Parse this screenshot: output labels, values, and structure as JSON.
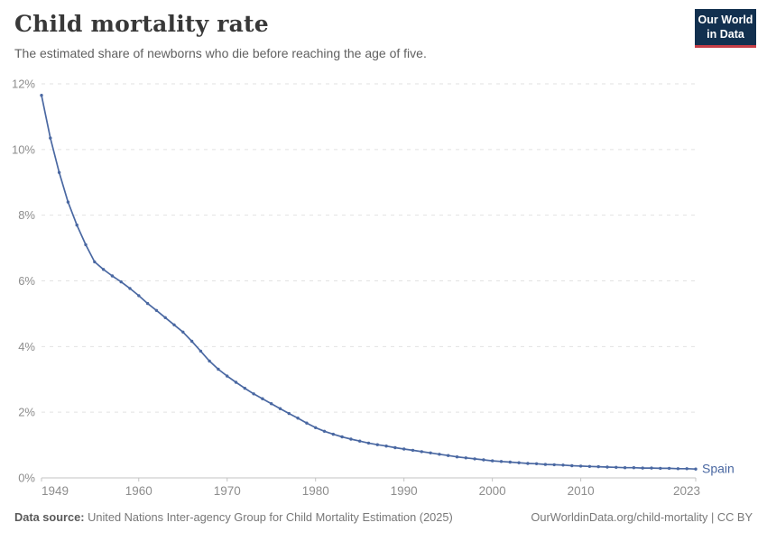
{
  "header": {
    "title": "Child mortality rate",
    "subtitle": "The estimated share of newborns who die before reaching the age of five."
  },
  "logo": {
    "line1": "Our World",
    "line2": "in Data",
    "bg_color": "#12304f",
    "accent_color": "#c53d46"
  },
  "chart_data": {
    "type": "line",
    "title": "Child mortality rate",
    "entity": "Spain",
    "unit": "%",
    "end_label": "Spain",
    "line_color": "#4a68a2",
    "grid": "horizontal-dashed",
    "legend_position": "end-of-line",
    "xlim": [
      1949,
      2023
    ],
    "ylim": [
      0,
      12
    ],
    "x_ticks": [
      1949,
      1960,
      1970,
      1980,
      1990,
      2000,
      2010,
      2023
    ],
    "y_ticks": [
      0,
      2,
      4,
      6,
      8,
      10,
      12
    ],
    "y_tick_labels": [
      "0%",
      "2%",
      "4%",
      "6%",
      "8%",
      "10%",
      "12%"
    ],
    "x": [
      1949,
      1950,
      1951,
      1952,
      1953,
      1954,
      1955,
      1956,
      1957,
      1958,
      1959,
      1960,
      1961,
      1962,
      1963,
      1964,
      1965,
      1966,
      1967,
      1968,
      1969,
      1970,
      1971,
      1972,
      1973,
      1974,
      1975,
      1976,
      1977,
      1978,
      1979,
      1980,
      1981,
      1982,
      1983,
      1984,
      1985,
      1986,
      1987,
      1988,
      1989,
      1990,
      1991,
      1992,
      1993,
      1994,
      1995,
      1996,
      1997,
      1998,
      1999,
      2000,
      2001,
      2002,
      2003,
      2004,
      2005,
      2006,
      2007,
      2008,
      2009,
      2010,
      2011,
      2012,
      2013,
      2014,
      2015,
      2016,
      2017,
      2018,
      2019,
      2020,
      2021,
      2022,
      2023
    ],
    "values": [
      11.65,
      10.35,
      9.3,
      8.4,
      7.7,
      7.1,
      6.58,
      6.35,
      6.15,
      5.97,
      5.77,
      5.55,
      5.31,
      5.1,
      4.88,
      4.66,
      4.44,
      4.16,
      3.86,
      3.56,
      3.31,
      3.1,
      2.91,
      2.73,
      2.56,
      2.41,
      2.26,
      2.11,
      1.96,
      1.82,
      1.67,
      1.53,
      1.42,
      1.33,
      1.25,
      1.18,
      1.12,
      1.06,
      1.01,
      0.97,
      0.92,
      0.88,
      0.84,
      0.8,
      0.76,
      0.72,
      0.68,
      0.64,
      0.61,
      0.58,
      0.55,
      0.52,
      0.5,
      0.48,
      0.46,
      0.44,
      0.43,
      0.41,
      0.4,
      0.39,
      0.37,
      0.36,
      0.35,
      0.34,
      0.33,
      0.32,
      0.31,
      0.31,
      0.3,
      0.3,
      0.29,
      0.29,
      0.28,
      0.28,
      0.27
    ]
  },
  "footer": {
    "source_label": "Data source:",
    "source_text": "United Nations Inter-agency Group for Child Mortality Estimation (2025)",
    "link": "OurWorldinData.org/child-mortality",
    "divider": "|",
    "license": "CC BY"
  }
}
